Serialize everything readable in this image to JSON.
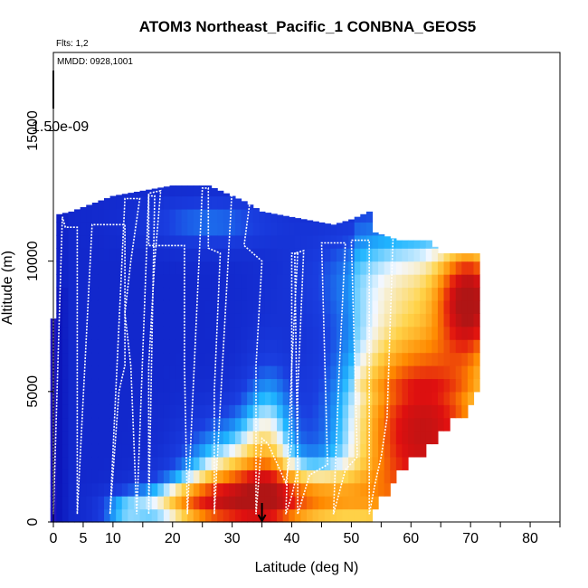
{
  "chart_data": {
    "type": "heatmap",
    "title": "ATOM3 Northeast_Pacific_1 CONBNA_GEOS5",
    "subtitle_flights": "Flts: 1,2",
    "subtitle_dates": "MMDD: 0928,1001",
    "xlabel": "Latitude (deg N)",
    "ylabel": "Altitude (m)",
    "xlim": [
      0,
      85
    ],
    "ylim": [
      0,
      18000
    ],
    "x_ticks": [
      0,
      5,
      10,
      20,
      30,
      40,
      50,
      60,
      70,
      80
    ],
    "y_ticks": [
      0,
      5000,
      10000,
      15000
    ],
    "colorbar_label": "1.50e-09",
    "arrow_latitude": 35,
    "colors": {
      "low": "#7b2be0",
      "dark_blue": "#0a12b8",
      "blue": "#1a3ee0",
      "cyan": "#1fb6ff",
      "white": "#f4f8ff",
      "yellow": "#ffd44a",
      "orange": "#ff8a00",
      "red": "#e01010",
      "dark_red": "#b01515",
      "track": "#ffffff"
    },
    "cell_lat_width": 1,
    "cell_alt_height": 500,
    "lat_columns": [
      -0.5,
      71.5
    ],
    "column_tops_m": [
      [
        0,
        7800
      ],
      [
        1,
        11800
      ],
      [
        3,
        11900
      ],
      [
        10,
        12500
      ],
      [
        20,
        12900
      ],
      [
        26,
        12900
      ],
      [
        32,
        12300
      ],
      [
        35,
        11900
      ],
      [
        47,
        11400
      ],
      [
        50,
        11600
      ],
      [
        53,
        11900
      ],
      [
        54,
        11100
      ],
      [
        58,
        10800
      ],
      [
        63,
        10800
      ],
      [
        65,
        10300
      ],
      [
        71,
        10300
      ]
    ],
    "bottom_edge_m": [
      [
        53,
        0
      ],
      [
        54,
        500
      ],
      [
        55,
        1000
      ],
      [
        57,
        1500
      ],
      [
        58,
        2000
      ],
      [
        61,
        2500
      ],
      [
        63,
        3000
      ],
      [
        65,
        3500
      ],
      [
        68,
        4000
      ],
      [
        70,
        4500
      ],
      [
        71.5,
        5000
      ]
    ],
    "flight_track": [
      [
        0,
        11600
      ],
      [
        0,
        300
      ],
      [
        1.5,
        11700
      ],
      [
        2,
        11300
      ],
      [
        4,
        11300
      ],
      [
        4,
        300
      ],
      [
        6.5,
        11400
      ],
      [
        12,
        11400
      ],
      [
        12,
        6000
      ],
      [
        11,
        5000
      ],
      [
        9.5,
        300
      ],
      [
        12,
        12400
      ],
      [
        14.5,
        12400
      ],
      [
        13,
        10000
      ],
      [
        12,
        8000
      ],
      [
        13,
        6000
      ],
      [
        14,
        300
      ],
      [
        16,
        12600
      ],
      [
        18,
        12700
      ],
      [
        17,
        10000
      ],
      [
        16,
        6000
      ],
      [
        16,
        300
      ],
      [
        17,
        12500
      ],
      [
        16,
        12500
      ],
      [
        16,
        10600
      ],
      [
        22,
        10600
      ],
      [
        22,
        6000
      ],
      [
        22.5,
        300
      ],
      [
        25,
        12800
      ],
      [
        26,
        12800
      ],
      [
        26,
        10500
      ],
      [
        28,
        10300
      ],
      [
        27,
        5000
      ],
      [
        27,
        300
      ],
      [
        30,
        12800
      ],
      [
        32,
        12500
      ],
      [
        33,
        12300
      ],
      [
        32,
        10600
      ],
      [
        35,
        10000
      ],
      [
        34,
        6000
      ],
      [
        34,
        300
      ],
      [
        35,
        3200
      ],
      [
        36,
        3000
      ],
      [
        38,
        2000
      ],
      [
        39,
        1500
      ],
      [
        40,
        3000
      ],
      [
        40,
        10300
      ],
      [
        41,
        10300
      ],
      [
        40,
        6000
      ],
      [
        39,
        300
      ],
      [
        40,
        1000
      ],
      [
        41,
        2000
      ],
      [
        40.5,
        10300
      ],
      [
        42,
        10400
      ],
      [
        41,
        5000
      ],
      [
        41,
        300
      ],
      [
        43,
        1800
      ],
      [
        46,
        2200
      ],
      [
        45,
        10700
      ],
      [
        49,
        10700
      ],
      [
        48,
        6000
      ],
      [
        47,
        300
      ],
      [
        49,
        2000
      ],
      [
        51,
        2500
      ],
      [
        50,
        10800
      ],
      [
        53,
        10800
      ],
      [
        53,
        6000
      ],
      [
        53,
        300
      ],
      [
        54,
        1500
      ],
      [
        55,
        2500
      ],
      [
        56,
        4000
      ],
      [
        57,
        10900
      ],
      [
        65,
        11000
      ],
      [
        71,
        10900
      ]
    ]
  }
}
